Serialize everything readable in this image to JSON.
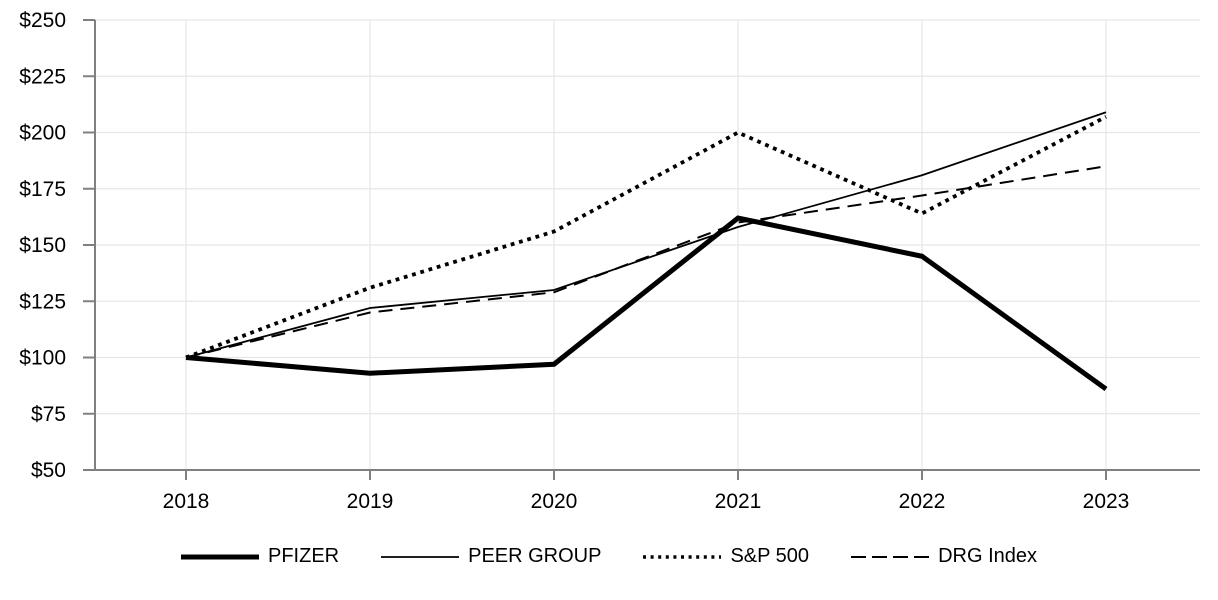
{
  "chart_data": {
    "type": "line",
    "title": "",
    "xlabel": "",
    "ylabel": "",
    "x": [
      2018,
      2019,
      2020,
      2021,
      2022,
      2023
    ],
    "x_tick_labels": [
      "2018",
      "2019",
      "2020",
      "2021",
      "2022",
      "2023"
    ],
    "y_ticks": [
      50,
      75,
      100,
      125,
      150,
      175,
      200,
      225,
      250
    ],
    "y_tick_labels": [
      "$50",
      "$75",
      "$100",
      "$125",
      "$150",
      "$175",
      "$200",
      "$225",
      "$250"
    ],
    "ylim": [
      50,
      250
    ],
    "grid": true,
    "legend_position": "bottom-center",
    "series": [
      {
        "name": "PFIZER",
        "style": "solid-thick",
        "values": [
          100,
          93,
          97,
          162,
          145,
          86
        ]
      },
      {
        "name": "PEER GROUP",
        "style": "solid-thin",
        "values": [
          100,
          122,
          130,
          158,
          181,
          209
        ]
      },
      {
        "name": "S&P 500",
        "style": "dotted",
        "values": [
          100,
          131,
          156,
          200,
          164,
          207
        ]
      },
      {
        "name": "DRG Index",
        "style": "dashed",
        "values": [
          100,
          120,
          129,
          160,
          172,
          185
        ]
      }
    ],
    "colors": {
      "line": "#000000",
      "axis": "#808080",
      "grid": "#e6e6e6",
      "label": "#000000",
      "background": "#ffffff"
    }
  }
}
